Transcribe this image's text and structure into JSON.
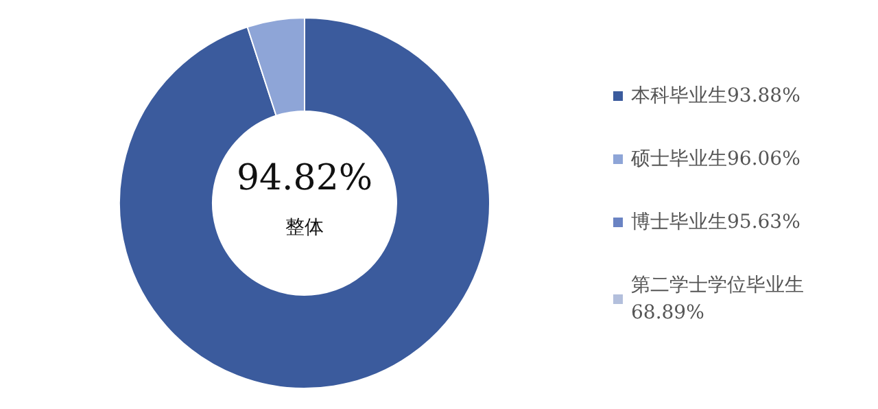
{
  "chart_data": {
    "type": "donut",
    "categories": [
      "本科毕业生93.88%",
      "硕士毕业生96.06%",
      "博士毕业生95.63%",
      "第二学士学位毕业生68.89%"
    ],
    "values": [
      95,
      5,
      0,
      0
    ],
    "colors": [
      "#3b5b9d",
      "#8ea5d7",
      "#6a83c3",
      "#b3bfdc"
    ],
    "annotations": [
      "94.82%",
      "整体"
    ],
    "legend": "right"
  }
}
